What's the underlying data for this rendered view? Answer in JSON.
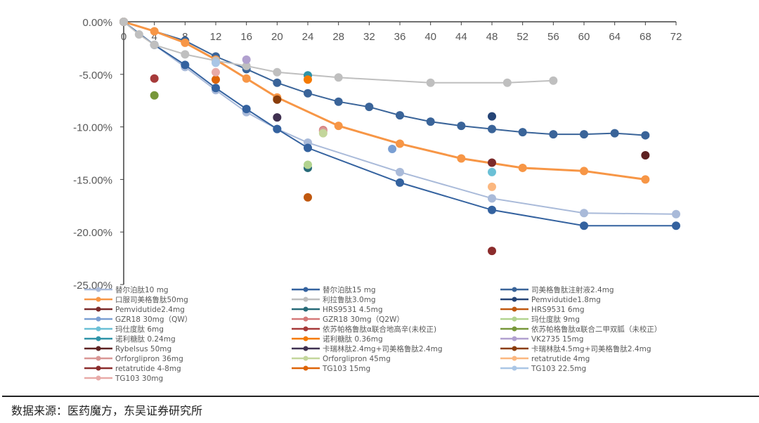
{
  "chart_data": {
    "type": "line",
    "title": "",
    "xlabel": "",
    "ylabel": "",
    "xlim": [
      0,
      72
    ],
    "ylim": [
      -25,
      0
    ],
    "x_ticks": [
      0,
      4,
      8,
      12,
      16,
      20,
      24,
      28,
      32,
      36,
      40,
      44,
      48,
      52,
      56,
      60,
      64,
      68,
      72
    ],
    "y_ticks": [
      0,
      -5,
      -10,
      -15,
      -20,
      -25
    ],
    "y_tick_labels": [
      "0.00%",
      "-5.00%",
      "-10.00%",
      "-15.00%",
      "-20.00%",
      "-25.00%"
    ],
    "x_axis_position": "top",
    "grid": false,
    "legend_placement": "bottom",
    "series": [
      {
        "name": "替尔泊肽10 mg",
        "color": "#a9bad9",
        "points": [
          [
            0,
            0
          ],
          [
            4,
            -2.2
          ],
          [
            8,
            -4.3
          ],
          [
            12,
            -6.5
          ],
          [
            16,
            -8.6
          ],
          [
            20,
            -10.2
          ],
          [
            24,
            -11.5
          ],
          [
            36,
            -14.3
          ],
          [
            48,
            -16.8
          ],
          [
            60,
            -18.2
          ],
          [
            72,
            -18.3
          ]
        ]
      },
      {
        "name": "替尔泊肽15 mg",
        "color": "#34629f",
        "points": [
          [
            0,
            0
          ],
          [
            4,
            -2.2
          ],
          [
            8,
            -4.1
          ],
          [
            12,
            -6.3
          ],
          [
            16,
            -8.3
          ],
          [
            20,
            -10.2
          ],
          [
            24,
            -12.0
          ],
          [
            36,
            -15.3
          ],
          [
            48,
            -17.9
          ],
          [
            60,
            -19.4
          ],
          [
            72,
            -19.4
          ]
        ]
      },
      {
        "name": "司美格鲁肽注射液2.4mg",
        "color": "#3a6499",
        "points": [
          [
            0,
            0
          ],
          [
            8,
            -1.8
          ],
          [
            12,
            -3.3
          ],
          [
            16,
            -4.5
          ],
          [
            20,
            -5.8
          ],
          [
            24,
            -6.8
          ],
          [
            28,
            -7.6
          ],
          [
            32,
            -8.1
          ],
          [
            36,
            -8.9
          ],
          [
            40,
            -9.5
          ],
          [
            44,
            -9.9
          ],
          [
            48,
            -10.2
          ],
          [
            52,
            -10.5
          ],
          [
            56,
            -10.7
          ],
          [
            60,
            -10.7
          ],
          [
            64,
            -10.6
          ],
          [
            68,
            -10.8
          ]
        ]
      },
      {
        "name": "口服司美格鲁肽50mg",
        "color": "#f79646",
        "points": [
          [
            0,
            0
          ],
          [
            4,
            -0.9
          ],
          [
            8,
            -2.0
          ],
          [
            12,
            -3.6
          ],
          [
            16,
            -5.4
          ],
          [
            20,
            -7.2
          ],
          [
            28,
            -9.9
          ],
          [
            36,
            -11.6
          ],
          [
            44,
            -13.0
          ],
          [
            52,
            -13.9
          ],
          [
            60,
            -14.2
          ],
          [
            68,
            -15.0
          ]
        ]
      },
      {
        "name": "利拉鲁肽3.0mg",
        "color": "#bfbfbf",
        "points": [
          [
            0,
            0
          ],
          [
            2,
            -1.2
          ],
          [
            4,
            -2.2
          ],
          [
            8,
            -3.1
          ],
          [
            12,
            -3.7
          ],
          [
            16,
            -4.2
          ],
          [
            20,
            -4.8
          ],
          [
            28,
            -5.3
          ],
          [
            40,
            -5.8
          ],
          [
            50,
            -5.8
          ],
          [
            56,
            -5.6
          ]
        ]
      },
      {
        "name": "Pemvidutide1.8mg",
        "color": "#254476",
        "points": [
          [
            48,
            -9.0
          ]
        ]
      },
      {
        "name": "Pemvidutide2.4mg",
        "color": "#7b2a2a",
        "points": [
          [
            48,
            -13.4
          ]
        ]
      },
      {
        "name": "HRS9531 4.5mg",
        "color": "#276a78",
        "points": [
          [
            24,
            -13.9
          ]
        ]
      },
      {
        "name": "HRS9531 6mg",
        "color": "#c0580f",
        "points": [
          [
            24,
            -16.7
          ]
        ]
      },
      {
        "name": "GZR18 30mg（QW）",
        "color": "#7a9fd3",
        "points": [
          [
            35,
            -12.1
          ]
        ]
      },
      {
        "name": "GZR18 30mg（Q2W）",
        "color": "#d47878",
        "points": [
          [
            26,
            -10.3
          ]
        ]
      },
      {
        "name": "玛仕度肽 9mg",
        "color": "#b2d38f",
        "points": [
          [
            24,
            -13.6
          ]
        ]
      },
      {
        "name": "玛仕度肽 6mg",
        "color": "#6bc0d6",
        "points": [
          [
            48,
            -14.3
          ]
        ]
      },
      {
        "name": "依苏帕格鲁肽α联合地高辛(未校正)",
        "color": "#a63a3a",
        "points": [
          [
            4,
            -5.4
          ]
        ]
      },
      {
        "name": "依苏帕格鲁肽α联合二甲双胍（未校正）",
        "color": "#77973a",
        "points": [
          [
            4,
            -7.0
          ]
        ]
      },
      {
        "name": "诺利糖肽 0.24mg",
        "color": "#2e93a8",
        "points": [
          [
            24,
            -5.1
          ]
        ]
      },
      {
        "name": "诺利糖肽 0.36mg",
        "color": "#f57a00",
        "points": [
          [
            24,
            -5.5
          ]
        ]
      },
      {
        "name": "VK2735 15mg",
        "color": "#b1a0cf",
        "points": [
          [
            16,
            -3.6
          ]
        ]
      },
      {
        "name": "Rybelsus 50mg",
        "color": "#5e2222",
        "points": [
          [
            68,
            -12.7
          ]
        ]
      },
      {
        "name": "卡瑞林肽2.4mg+司美格鲁肽2.4mg",
        "color": "#3f3050",
        "points": [
          [
            20,
            -9.1
          ]
        ]
      },
      {
        "name": "卡瑞林肽4.5mg+司美格鲁肽2.4mg",
        "color": "#8a3d0a",
        "points": [
          [
            20,
            -7.4
          ]
        ]
      },
      {
        "name": "Orforglipron 36mg",
        "color": "#d99694",
        "points": [
          [
            26,
            -10.4
          ]
        ]
      },
      {
        "name": "Orforglipron 45mg",
        "color": "#c3d69b",
        "points": [
          [
            26,
            -10.6
          ]
        ]
      },
      {
        "name": "retatrutide 4mg",
        "color": "#fbb77f",
        "points": [
          [
            48,
            -15.7
          ]
        ]
      },
      {
        "name": "retatrutide 4-8mg",
        "color": "#8b2c2c",
        "points": [
          [
            48,
            -21.8
          ]
        ]
      },
      {
        "name": "TG103 15mg",
        "color": "#de6408",
        "points": [
          [
            12,
            -5.5
          ]
        ]
      },
      {
        "name": "TG103 22.5mg",
        "color": "#a9c6e6",
        "points": [
          [
            12,
            -3.9
          ]
        ]
      },
      {
        "name": "TG103 30mg",
        "color": "#e8aaa8",
        "points": [
          [
            12,
            -4.8
          ]
        ]
      }
    ]
  },
  "footer": {
    "source": "数据来源：医药魔方，东吴证券研究所"
  }
}
